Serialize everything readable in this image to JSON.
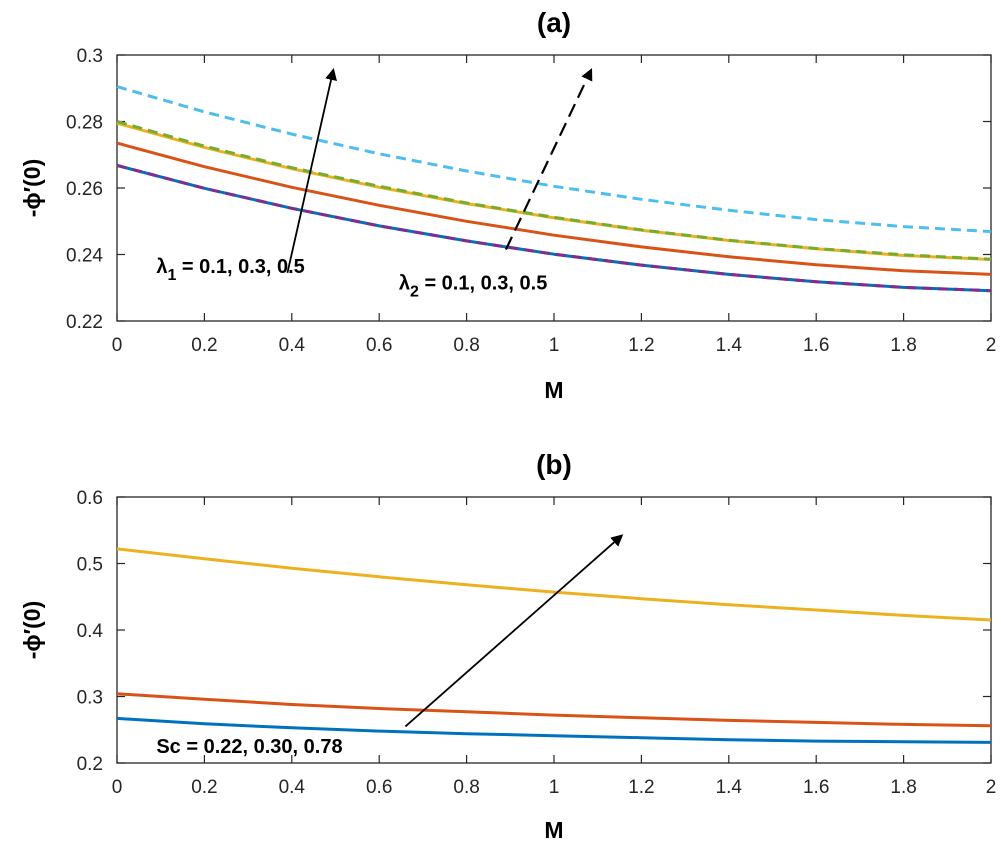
{
  "chart_data": [
    {
      "type": "line",
      "title": "(a)",
      "xlabel": "M",
      "ylabel": "-ϕ′(0)",
      "xlim": [
        0,
        2
      ],
      "ylim": [
        0.22,
        0.3
      ],
      "xticks": [
        0,
        0.2,
        0.4,
        0.6,
        0.8,
        1,
        1.2,
        1.4,
        1.6,
        1.8,
        2
      ],
      "xtick_labels": [
        "0",
        "0.2",
        "0.4",
        "0.6",
        "0.8",
        "1",
        "1.2",
        "1.4",
        "1.6",
        "1.8",
        "2"
      ],
      "yticks": [
        0.22,
        0.24,
        0.26,
        0.28,
        0.3
      ],
      "ytick_labels": [
        "0.22",
        "0.24",
        "0.26",
        "0.28",
        "0.3"
      ],
      "x": [
        0,
        0.2,
        0.4,
        0.6,
        0.8,
        1.0,
        1.2,
        1.4,
        1.6,
        1.8,
        2.0
      ],
      "series": [
        {
          "name": "λ1 = 0.1",
          "color": "#0072BD",
          "style": "solid",
          "values": [
            0.2668,
            0.2599,
            0.2539,
            0.2486,
            0.2441,
            0.2401,
            0.2368,
            0.234,
            0.2318,
            0.2301,
            0.2291
          ]
        },
        {
          "name": "λ1 = 0.3",
          "color": "#D95319",
          "style": "solid",
          "values": [
            0.2735,
            0.2664,
            0.2602,
            0.2548,
            0.25,
            0.2458,
            0.2423,
            0.2393,
            0.2369,
            0.2351,
            0.234
          ]
        },
        {
          "name": "λ1 = 0.5",
          "color": "#EDB120",
          "style": "solid",
          "values": [
            0.2795,
            0.2722,
            0.2658,
            0.2602,
            0.2553,
            0.251,
            0.2473,
            0.2442,
            0.2417,
            0.2397,
            0.2385
          ]
        },
        {
          "name": "λ2 = 0.1",
          "color": "#7E2F8E",
          "style": "dashed",
          "values": [
            0.2668,
            0.2599,
            0.2539,
            0.2486,
            0.2441,
            0.2401,
            0.2368,
            0.234,
            0.2318,
            0.2301,
            0.2291
          ]
        },
        {
          "name": "λ2 = 0.3",
          "color": "#77AC30",
          "style": "dashed",
          "values": [
            0.28,
            0.2726,
            0.2661,
            0.2605,
            0.2555,
            0.2512,
            0.2474,
            0.2443,
            0.2418,
            0.2399,
            0.2386
          ]
        },
        {
          "name": "λ2 = 0.5",
          "color": "#4DBEEE",
          "style": "dashed",
          "values": [
            0.2905,
            0.2829,
            0.2762,
            0.2703,
            0.2651,
            0.2605,
            0.2566,
            0.2533,
            0.2505,
            0.2484,
            0.2469
          ]
        }
      ],
      "annotations": [
        {
          "label_prefix": "λ",
          "label_sub": "1",
          "label_rest": " = 0.1, 0.3, 0.5",
          "arrow_style": "solid",
          "arrow_from": [
            0.39,
            0.2345
          ],
          "arrow_to": [
            0.495,
            0.2955
          ],
          "text_at": [
            0.09,
            0.2345
          ]
        },
        {
          "label_prefix": "λ",
          "label_sub": "2",
          "label_rest": " = 0.1, 0.3, 0.5",
          "arrow_style": "dashed",
          "arrow_from": [
            0.89,
            0.2415
          ],
          "arrow_to": [
            1.085,
            0.2955
          ],
          "text_at": [
            0.645,
            0.2295
          ]
        }
      ]
    },
    {
      "type": "line",
      "title": "(b)",
      "xlabel": "M",
      "ylabel": "-ϕ′(0)",
      "xlim": [
        0,
        2
      ],
      "ylim": [
        0.2,
        0.6
      ],
      "xticks": [
        0,
        0.2,
        0.4,
        0.6,
        0.8,
        1,
        1.2,
        1.4,
        1.6,
        1.8,
        2
      ],
      "xtick_labels": [
        "0",
        "0.2",
        "0.4",
        "0.6",
        "0.8",
        "1",
        "1.2",
        "1.4",
        "1.6",
        "1.8",
        "2"
      ],
      "yticks": [
        0.2,
        0.3,
        0.4,
        0.5,
        0.6
      ],
      "ytick_labels": [
        "0.2",
        "0.3",
        "0.4",
        "0.5",
        "0.6"
      ],
      "x": [
        0,
        0.2,
        0.4,
        0.6,
        0.8,
        1.0,
        1.2,
        1.4,
        1.6,
        1.8,
        2.0
      ],
      "series": [
        {
          "name": "Sc = 0.22",
          "color": "#0072BD",
          "style": "solid",
          "values": [
            0.267,
            0.259,
            0.253,
            0.248,
            0.244,
            0.241,
            0.238,
            0.235,
            0.233,
            0.232,
            0.231
          ]
        },
        {
          "name": "Sc = 0.30",
          "color": "#D95319",
          "style": "solid",
          "values": [
            0.304,
            0.296,
            0.288,
            0.282,
            0.277,
            0.272,
            0.268,
            0.264,
            0.261,
            0.258,
            0.256
          ]
        },
        {
          "name": "Sc = 0.78",
          "color": "#EDB120",
          "style": "solid",
          "values": [
            0.522,
            0.507,
            0.493,
            0.48,
            0.468,
            0.457,
            0.447,
            0.438,
            0.43,
            0.422,
            0.415
          ]
        }
      ],
      "annotations": [
        {
          "label_prefix": "Sc = 0.22, 0.30, 0.78",
          "label_sub": "",
          "label_rest": "",
          "arrow_style": "solid",
          "arrow_from": [
            0.66,
            0.255
          ],
          "arrow_to": [
            1.155,
            0.542
          ],
          "text_at": [
            0.09,
            0.215
          ]
        }
      ]
    }
  ]
}
